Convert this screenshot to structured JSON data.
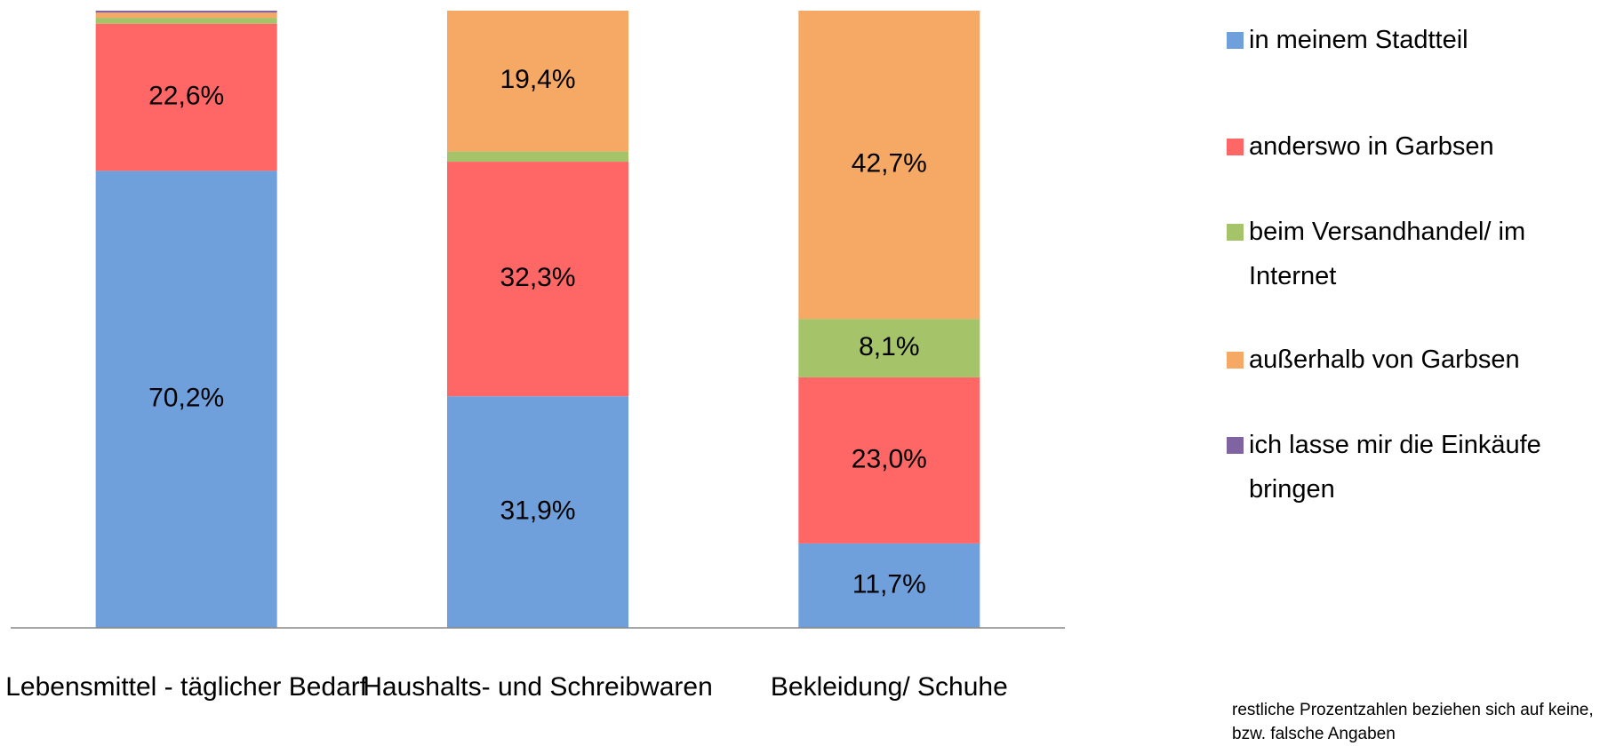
{
  "chart_data": {
    "type": "bar",
    "stack": "percent",
    "categories": [
      "Lebensmittel - täglicher Bedarf",
      "Haushalts- und Schreibwaren",
      "Bekleidung/ Schuhe"
    ],
    "series": [
      {
        "name": "in meinem Stadtteil",
        "color": "#6fa0db",
        "values": [
          70.2,
          31.9,
          11.7
        ],
        "value_labels": [
          "70,2%",
          "31,9%",
          "11,7%"
        ]
      },
      {
        "name": "anderswo in Garbsen",
        "color": "#ff6666",
        "values": [
          22.6,
          32.3,
          23.0
        ],
        "value_labels": [
          "22,6%",
          "32,3%",
          "23,0%"
        ]
      },
      {
        "name": "beim Versandhandel/ im Internet",
        "color": "#a5c46a",
        "values": [
          0.9,
          1.4,
          8.1
        ],
        "value_labels": [
          null,
          null,
          "8,1%"
        ]
      },
      {
        "name": "außerhalb von Garbsen",
        "color": "#f6a865",
        "values": [
          0.8,
          19.4,
          42.7
        ],
        "value_labels": [
          null,
          "19,4%",
          "42,7%"
        ]
      },
      {
        "name": "ich lasse mir die Einkäufe bringen",
        "color": "#8064a2",
        "values": [
          0.3,
          0,
          0
        ],
        "value_labels": [
          null,
          null,
          null
        ]
      }
    ],
    "note": "restliche Prozentzahlen beziehen sich auf keine, bzw. falsche Angaben"
  }
}
